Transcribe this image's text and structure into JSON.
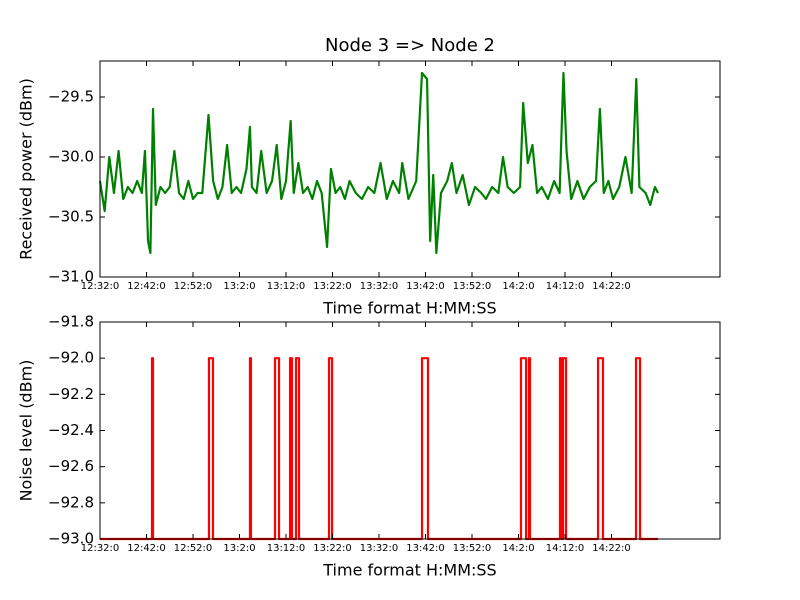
{
  "chart_data": [
    {
      "type": "line",
      "title": "Node 3 => Node 2",
      "xlabel": "Time format H:MM:SS",
      "ylabel": "Received power (dBm)",
      "xlim": [
        0,
        8000
      ],
      "xticks": [
        {
          "value": 0,
          "label": "12:32:0"
        },
        {
          "value": 600,
          "label": "12:42:0"
        },
        {
          "value": 1200,
          "label": "12:52:0"
        },
        {
          "value": 1800,
          "label": "13:2:0"
        },
        {
          "value": 2400,
          "label": "13:12:0"
        },
        {
          "value": 3000,
          "label": "13:22:0"
        },
        {
          "value": 3600,
          "label": "13:32:0"
        },
        {
          "value": 4200,
          "label": "13:42:0"
        },
        {
          "value": 4800,
          "label": "13:52:0"
        },
        {
          "value": 5400,
          "label": "14:2:0"
        },
        {
          "value": 6000,
          "label": "14:12:0"
        },
        {
          "value": 6600,
          "label": "14:22:0"
        }
      ],
      "ylim": [
        -31,
        -29.2
      ],
      "yticks": [
        {
          "value": -31,
          "label": "−31.0"
        },
        {
          "value": -30.5,
          "label": "−30.5"
        },
        {
          "value": -30,
          "label": "−30.0"
        },
        {
          "value": -29.5,
          "label": "−29.5"
        }
      ],
      "series": [
        {
          "color": "#008000",
          "x": [
            0,
            60,
            120,
            180,
            240,
            300,
            360,
            420,
            480,
            540,
            580,
            620,
            650,
            684,
            720,
            780,
            840,
            900,
            960,
            1020,
            1080,
            1140,
            1200,
            1260,
            1320,
            1400,
            1460,
            1520,
            1580,
            1640,
            1700,
            1760,
            1820,
            1890,
            1935,
            1960,
            2020,
            2080,
            2150,
            2220,
            2280,
            2340,
            2400,
            2460,
            2500,
            2560,
            2620,
            2680,
            2740,
            2800,
            2860,
            2930,
            2980,
            3040,
            3100,
            3160,
            3220,
            3300,
            3380,
            3460,
            3540,
            3620,
            3700,
            3780,
            3860,
            3900,
            3980,
            4080,
            4155,
            4220,
            4260,
            4300,
            4340,
            4400,
            4480,
            4540,
            4600,
            4680,
            4760,
            4840,
            4920,
            4980,
            5060,
            5140,
            5200,
            5260,
            5340,
            5420,
            5460,
            5520,
            5580,
            5640,
            5700,
            5780,
            5860,
            5930,
            5980,
            6020,
            6080,
            6160,
            6240,
            6320,
            6400,
            6450,
            6500,
            6560,
            6620,
            6700,
            6780,
            6860,
            6920,
            6960,
            7040,
            7100,
            7160,
            7200
          ],
          "values": [
            -30.2,
            -30.45,
            -30.0,
            -30.3,
            -29.95,
            -30.35,
            -30.25,
            -30.3,
            -30.2,
            -30.3,
            -29.95,
            -30.7,
            -30.8,
            -29.6,
            -30.4,
            -30.25,
            -30.3,
            -30.25,
            -29.95,
            -30.3,
            -30.35,
            -30.2,
            -30.35,
            -30.3,
            -30.3,
            -29.65,
            -30.2,
            -30.35,
            -30.25,
            -29.9,
            -30.3,
            -30.25,
            -30.3,
            -30.1,
            -29.75,
            -30.25,
            -30.3,
            -29.95,
            -30.3,
            -30.2,
            -29.9,
            -30.35,
            -30.2,
            -29.7,
            -30.3,
            -30.05,
            -30.3,
            -30.25,
            -30.35,
            -30.2,
            -30.3,
            -30.75,
            -30.1,
            -30.3,
            -30.25,
            -30.35,
            -30.2,
            -30.3,
            -30.35,
            -30.25,
            -30.3,
            -30.05,
            -30.35,
            -30.2,
            -30.3,
            -30.05,
            -30.35,
            -30.2,
            -29.3,
            -29.35,
            -30.7,
            -30.15,
            -30.8,
            -30.3,
            -30.2,
            -30.05,
            -30.3,
            -30.15,
            -30.4,
            -30.25,
            -30.3,
            -30.35,
            -30.25,
            -30.3,
            -30.0,
            -30.25,
            -30.3,
            -30.25,
            -29.55,
            -30.05,
            -29.9,
            -30.3,
            -30.25,
            -30.35,
            -30.2,
            -30.3,
            -29.3,
            -29.95,
            -30.35,
            -30.2,
            -30.35,
            -30.25,
            -30.2,
            -29.6,
            -30.3,
            -30.2,
            -30.35,
            -30.25,
            -30.0,
            -30.3,
            -29.35,
            -30.25,
            -30.3,
            -30.4,
            -30.25,
            -30.3
          ]
        }
      ]
    },
    {
      "type": "line",
      "xlabel": "Time format H:MM:SS",
      "ylabel": "Noise level (dBm)",
      "xlim": [
        0,
        8000
      ],
      "xticks": [
        {
          "value": 0,
          "label": "12:32:0"
        },
        {
          "value": 600,
          "label": "12:42:0"
        },
        {
          "value": 1200,
          "label": "12:52:0"
        },
        {
          "value": 1800,
          "label": "13:2:0"
        },
        {
          "value": 2400,
          "label": "13:12:0"
        },
        {
          "value": 3000,
          "label": "13:22:0"
        },
        {
          "value": 3600,
          "label": "13:32:0"
        },
        {
          "value": 4200,
          "label": "13:42:0"
        },
        {
          "value": 4800,
          "label": "13:52:0"
        },
        {
          "value": 5400,
          "label": "14:2:0"
        },
        {
          "value": 6000,
          "label": "14:12:0"
        },
        {
          "value": 6600,
          "label": "14:22:0"
        }
      ],
      "ylim": [
        -93,
        -91.8
      ],
      "yticks": [
        {
          "value": -93,
          "label": "−93.0"
        },
        {
          "value": -92.8,
          "label": "−92.8"
        },
        {
          "value": -92.6,
          "label": "−92.6"
        },
        {
          "value": -92.4,
          "label": "−92.4"
        },
        {
          "value": -92.2,
          "label": "−92.2"
        },
        {
          "value": -92,
          "label": "−92.0"
        },
        {
          "value": -91.8,
          "label": "−91.8"
        }
      ],
      "series": [
        {
          "color": "#ff0000",
          "x": [
            0,
            671,
            671,
            684,
            684,
            1406,
            1406,
            1458,
            1458,
            1935,
            1935,
            1948,
            1948,
            2258,
            2258,
            2310,
            2310,
            2452,
            2452,
            2477,
            2477,
            2529,
            2529,
            2568,
            2568,
            2955,
            2955,
            2994,
            2994,
            4155,
            4155,
            4232,
            4232,
            5432,
            5432,
            5497,
            5497,
            5535,
            5535,
            5548,
            5548,
            5935,
            5935,
            5961,
            5961,
            5974,
            5974,
            6013,
            6013,
            6426,
            6426,
            6490,
            6490,
            6916,
            6916,
            6968,
            6968,
            7200
          ],
          "values": [
            -93,
            -93,
            -92,
            -92,
            -93,
            -93,
            -92,
            -92,
            -93,
            -93,
            -92,
            -92,
            -93,
            -93,
            -92,
            -92,
            -93,
            -93,
            -92,
            -92,
            -93,
            -93,
            -92,
            -92,
            -93,
            -93,
            -92,
            -92,
            -93,
            -93,
            -92,
            -92,
            -93,
            -93,
            -92,
            -92,
            -93,
            -93,
            -92,
            -92,
            -93,
            -93,
            -92,
            -92,
            -93,
            -93,
            -92,
            -92,
            -93,
            -93,
            -92,
            -92,
            -93,
            -93,
            -92,
            -92,
            -93,
            -93
          ]
        }
      ]
    }
  ]
}
